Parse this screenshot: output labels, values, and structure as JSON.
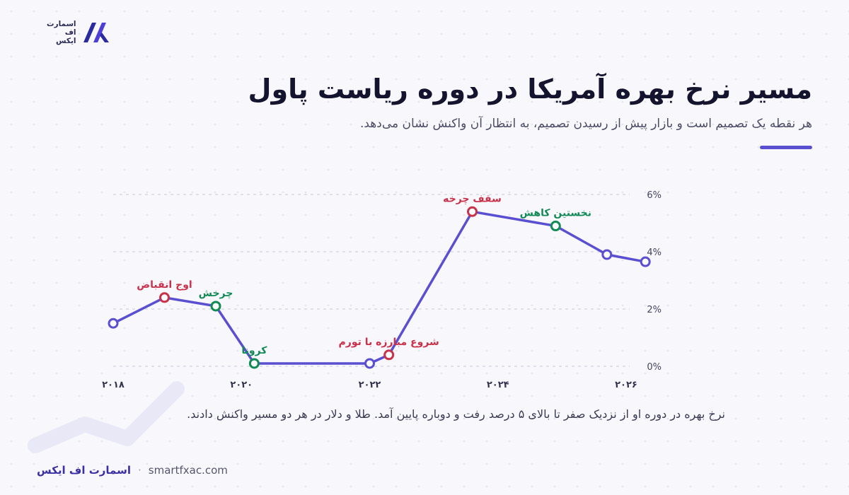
{
  "brand": {
    "logo_lines": [
      "اسمارت",
      "اف",
      "ایکس"
    ],
    "footer_name": "اسمارت اف ایکس",
    "footer_separator": "·",
    "footer_url": "smartfxac.com",
    "accent_color": "#5b4fd1"
  },
  "header": {
    "title": "مسیر نرخ بهره آمریکا در دوره ریاست پاول",
    "subtitle": "هر نقطه یک تصمیم است و بازار پیش از رسیدن تصمیم، به انتظار آن واکنش نشان می‌دهد."
  },
  "note": "نرخ بهره در دوره او از نزدیک صفر تا بالای ۵ درصد رفت و دوباره پایین آمد. طلا و دلار در هر دو مسیر واکنش دادند.",
  "chart_data": {
    "type": "line",
    "title": "",
    "xlabel": "",
    "ylabel": "",
    "x_ticks": [
      2018,
      2020,
      2022,
      2024,
      2026
    ],
    "x_tick_labels": [
      "۲۰۱۸",
      "۲۰۲۰",
      "۲۰۲۲",
      "۲۰۲۴",
      "۲۰۲۶"
    ],
    "y_ticks": [
      0,
      2,
      4,
      6
    ],
    "y_tick_labels": [
      "0%",
      "2%",
      "4%",
      "6%"
    ],
    "xlim": [
      2018,
      2026
    ],
    "ylim": [
      0,
      6
    ],
    "grid": "horizontal",
    "line_color": "#5b4fd1",
    "series": [
      {
        "points": [
          {
            "x": 2018.0,
            "y": 1.5,
            "label": "",
            "color": "#5b4fd1"
          },
          {
            "x": 2018.8,
            "y": 2.4,
            "label": "اوج انقباض",
            "color": "#c8324a"
          },
          {
            "x": 2019.6,
            "y": 2.1,
            "label": "چرخش",
            "color": "#128a55"
          },
          {
            "x": 2020.2,
            "y": 0.1,
            "label": "کرونا",
            "color": "#128a55"
          },
          {
            "x": 2022.0,
            "y": 0.1,
            "label": "",
            "color": "#5b4fd1"
          },
          {
            "x": 2022.3,
            "y": 0.4,
            "label": "شروع مبارزه با تورم",
            "color": "#c8324a"
          },
          {
            "x": 2023.6,
            "y": 5.4,
            "label": "سقف چرخه",
            "color": "#c8324a"
          },
          {
            "x": 2024.9,
            "y": 4.9,
            "label": "نخستین کاهش",
            "color": "#128a55"
          },
          {
            "x": 2025.7,
            "y": 3.9,
            "label": "",
            "color": "#5b4fd1"
          },
          {
            "x": 2026.3,
            "y": 3.65,
            "label": "",
            "color": "#5b4fd1"
          }
        ]
      }
    ]
  }
}
